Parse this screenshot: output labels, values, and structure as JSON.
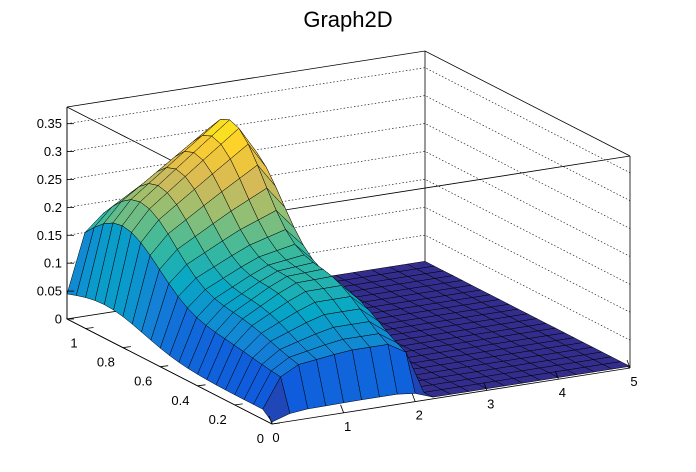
{
  "chart_data": {
    "type": "surface",
    "title": "Graph2D",
    "xlabel": "",
    "ylabel": "",
    "zlabel": "",
    "xlim": [
      0,
      5
    ],
    "ylim": [
      0,
      1.1
    ],
    "zlim": [
      0,
      0.38
    ],
    "x_ticks": [
      {
        "value": 0,
        "label": "0"
      },
      {
        "value": 1,
        "label": "1"
      },
      {
        "value": 2,
        "label": "2"
      },
      {
        "value": 3,
        "label": "3"
      },
      {
        "value": 4,
        "label": "4"
      },
      {
        "value": 5,
        "label": "5"
      }
    ],
    "y_ticks": [
      {
        "value": 0,
        "label": "0"
      },
      {
        "value": 0.2,
        "label": "0.2"
      },
      {
        "value": 0.4,
        "label": "0.4"
      },
      {
        "value": 0.6,
        "label": "0.6"
      },
      {
        "value": 0.8,
        "label": "0.8"
      },
      {
        "value": 1,
        "label": "1"
      }
    ],
    "z_ticks": [
      {
        "value": 0,
        "label": "0"
      },
      {
        "value": 0.05,
        "label": "0.05"
      },
      {
        "value": 0.1,
        "label": "0.1"
      },
      {
        "value": 0.15,
        "label": "0.15"
      },
      {
        "value": 0.2,
        "label": "0.2"
      },
      {
        "value": 0.25,
        "label": "0.25"
      },
      {
        "value": 0.3,
        "label": "0.3"
      },
      {
        "value": 0.35,
        "label": "0.35"
      }
    ],
    "grid": true,
    "colormap": [
      "#352a87",
      "#0f5cdd",
      "#1481d6",
      "#06a7c6",
      "#38b99e",
      "#92bf73",
      "#d9ba56",
      "#fcce2e",
      "#f9fb0e"
    ],
    "surface_model": {
      "x_grid": [
        0,
        0.25,
        0.5,
        0.75,
        1,
        1.25,
        1.5,
        1.75,
        2,
        2.25,
        2.5,
        2.75,
        3,
        3.25,
        3.5,
        3.75,
        4,
        4.25,
        4.5,
        4.75,
        5
      ],
      "y_grid": [
        0,
        0.05,
        0.1,
        0.15,
        0.2,
        0.25,
        0.3,
        0.35,
        0.4,
        0.45,
        0.5,
        0.55,
        0.6,
        0.65,
        0.7,
        0.75,
        0.8,
        0.85,
        0.9,
        0.95,
        1,
        1.05,
        1.1
      ],
      "cutoff_x": 2.05,
      "peak_z": 0.37
    }
  }
}
